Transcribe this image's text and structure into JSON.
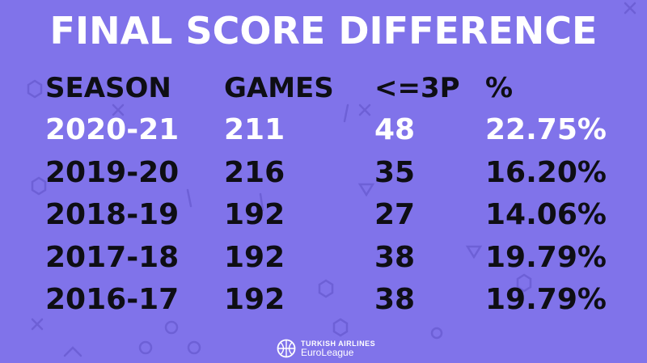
{
  "title": "FINAL SCORE DIFFERENCE",
  "chart_data": {
    "type": "table",
    "title": "FINAL SCORE DIFFERENCE",
    "columns": [
      "SEASON",
      "GAMES",
      "<=3P",
      "%"
    ],
    "rows": [
      [
        "2020-21",
        "211",
        "48",
        "22.75%"
      ],
      [
        "2019-20",
        "216",
        "35",
        "16.20%"
      ],
      [
        "2018-19",
        "192",
        "27",
        "14.06%"
      ],
      [
        "2017-18",
        "192",
        "38",
        "19.79%"
      ],
      [
        "2016-17",
        "192",
        "38",
        "19.79%"
      ]
    ],
    "highlight_row": 0
  },
  "brand": {
    "line1": "TURKISH AIRLINES",
    "line2": "EuroLeague",
    "logo": "euroleague-ball-icon"
  },
  "colors": {
    "background": "#8073ea",
    "text": "#0e0e14",
    "highlight": "#ffffff",
    "decoration": "#6d60d6"
  }
}
